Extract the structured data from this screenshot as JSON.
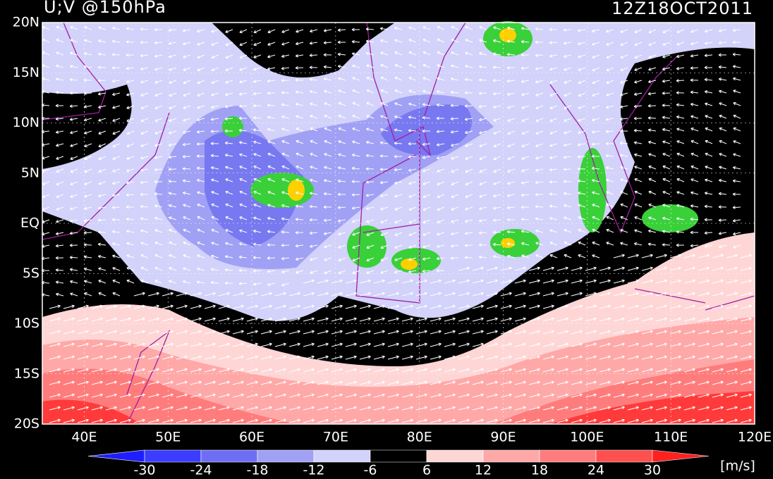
{
  "header": {
    "title": "U;V @150hPa",
    "time": "12Z18OCT2011"
  },
  "map": {
    "lat_labels": [
      "20N",
      "15N",
      "10N",
      "5N",
      "EQ",
      "5S",
      "10S",
      "15S",
      "20S"
    ],
    "lon_labels": [
      "40E",
      "50E",
      "60E",
      "70E",
      "80E",
      "90E",
      "100E",
      "110E",
      "120E"
    ]
  },
  "colorbar": {
    "labels": [
      "-30",
      "-24",
      "-18",
      "-12",
      "-6",
      "6",
      "12",
      "18",
      "24",
      "30"
    ],
    "colors": [
      "#1e1eff",
      "#3c3cff",
      "#6e6ef5",
      "#a0a0f5",
      "#d2d2fa",
      "#000000",
      "#ffd6d6",
      "#ffa8a8",
      "#ff7c7c",
      "#ff5050",
      "#ff2020"
    ],
    "unit": "[m/s]"
  }
}
